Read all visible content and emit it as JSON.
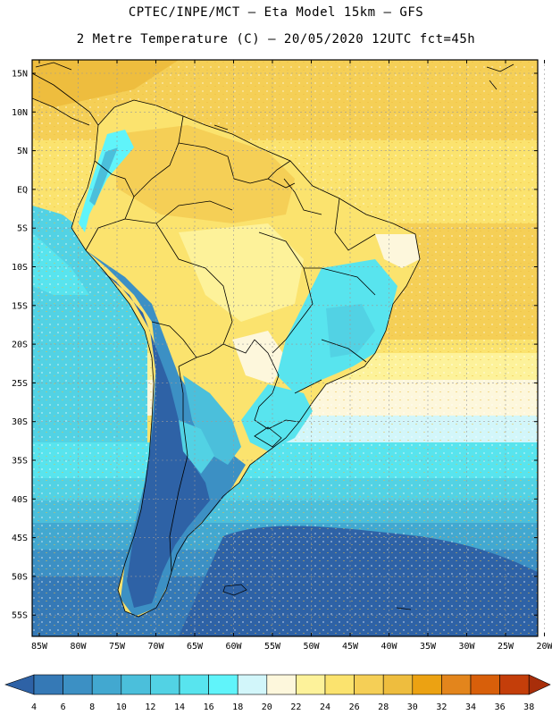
{
  "header": {
    "line1": "CPTEC/INPE/MCT –  Eta Model 15km – GFS",
    "line2": "2 Metre Temperature (C) – 20/05/2020 12UTC fct=45h"
  },
  "map": {
    "lat_labels": [
      "15N",
      "10N",
      "5N",
      "EQ",
      "5S",
      "10S",
      "15S",
      "20S",
      "25S",
      "30S",
      "35S",
      "40S",
      "45S",
      "50S",
      "55S"
    ],
    "lon_labels": [
      "85W",
      "80W",
      "75W",
      "70W",
      "65W",
      "60W",
      "55W",
      "50W",
      "45W",
      "40W",
      "35W",
      "30W",
      "25W",
      "20W"
    ]
  },
  "colorbar": {
    "labels": [
      "4",
      "6",
      "8",
      "10",
      "12",
      "14",
      "16",
      "18",
      "20",
      "22",
      "24",
      "26",
      "28",
      "30",
      "32",
      "34",
      "36",
      "38"
    ],
    "colors": [
      "#2e62a6",
      "#3579b6",
      "#3c90c4",
      "#42a8d0",
      "#4bbfdb",
      "#52d2e4",
      "#58e4ee",
      "#60f4fa",
      "#d2f6fa",
      "#fdf7dc",
      "#fdf29a",
      "#fbe36e",
      "#f5cf56",
      "#eebd3e",
      "#eca212",
      "#e3851c",
      "#d85f0a",
      "#c43e0a",
      "#a82e0a"
    ]
  }
}
